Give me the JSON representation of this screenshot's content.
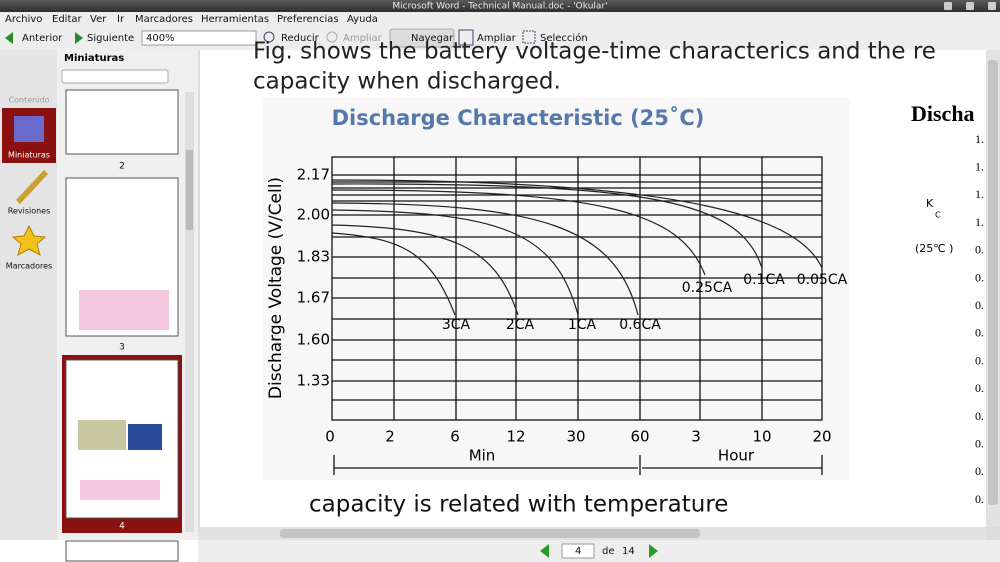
{
  "window": {
    "title": "Microsoft Word - Technical Manual.doc - 'Okular'"
  },
  "menu": {
    "items": [
      "Archivo",
      "Editar",
      "Ver",
      "Ir",
      "Marcadores",
      "Herramientas",
      "Preferencias",
      "Ayuda"
    ]
  },
  "toolbar": {
    "previous": "Anterior",
    "next": "Siguiente",
    "zoom": "400%",
    "zoom_out": "Reducir",
    "zoom_in": "Ampliar",
    "browse": "Navegar",
    "zoom_tool": "Ampliar",
    "selection": "Selección"
  },
  "sidebar": {
    "items": [
      "Contenido",
      "Miniaturas",
      "Revisiones",
      "Marcadores"
    ]
  },
  "thumbnails": {
    "title": "Miniaturas",
    "pages": [
      "2",
      "3",
      "4"
    ]
  },
  "document": {
    "line1": "Fig. shows the battery voltage-time characterics and the re",
    "line2": "capacity when discharged.",
    "chart": {
      "title": "Discharge Characteristic  (25˚C)",
      "y_label": "Discharge Voltage (V/Cell)",
      "y_ticks": [
        "2.17",
        "2.00",
        "1.83",
        "1.67",
        "1.60",
        "1.33"
      ],
      "x_ticks": [
        "0",
        "2",
        "6",
        "12",
        "30",
        "60",
        "3",
        "10",
        "20"
      ],
      "x_groups": [
        "Min",
        "Hour"
      ],
      "curves": [
        "3CA",
        "2CA",
        "1CA",
        "0.6CA",
        "0.25CA",
        "0.1CA",
        "0.05CA"
      ]
    },
    "caption": "capacity is related with temperature",
    "right_column": {
      "heading": "Discha",
      "k": "K",
      "c": "C",
      "temp": "(25℃ )",
      "items": [
        "1.",
        "1.",
        "1.",
        "1.",
        "0.",
        "0.",
        "0.",
        "0.",
        "0.",
        "0.",
        "0.",
        "0.",
        "0.",
        "0."
      ]
    }
  },
  "nav": {
    "page": "4",
    "of": "de",
    "total": "14"
  }
}
